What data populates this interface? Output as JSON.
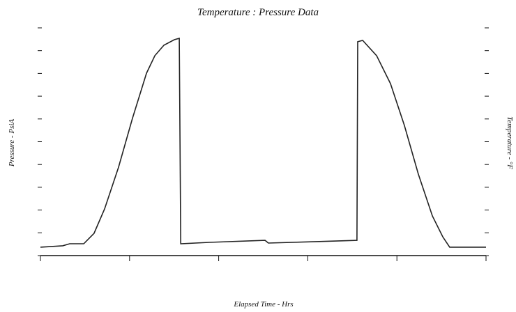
{
  "chart_data": {
    "type": "line",
    "title": "Temperature : Pressure Data",
    "x_label": "Elapsed Time - Hrs",
    "y_label": "Pressure - PsiA",
    "y2_label": "Temperature - °F",
    "xlim": [
      0,
      25
    ],
    "xticks": [
      0,
      5,
      10,
      15,
      20,
      25
    ],
    "ylim": [
      0,
      100
    ],
    "yticks": [
      0,
      10,
      20,
      30,
      40,
      50,
      60,
      70,
      80,
      90,
      100
    ],
    "series": [
      {
        "name": "Pressure",
        "color": "#222222",
        "x": [
          0,
          1.25,
          1.64,
          2.43,
          3.01,
          3.6,
          4.38,
          5.16,
          5.95,
          6.42,
          6.93,
          7.51,
          7.79,
          7.87,
          9.47,
          12.6,
          12.79,
          15.34,
          17.76,
          17.8,
          18.08,
          18.86,
          19.64,
          20.42,
          21.2,
          21.99,
          22.57,
          22.96,
          25
        ],
        "values": [
          3.7,
          4.3,
          5.2,
          5.2,
          9.8,
          20.5,
          38.8,
          60.2,
          80.1,
          87.8,
          92.4,
          94.8,
          95.4,
          5.2,
          5.8,
          6.7,
          5.5,
          6.1,
          6.7,
          93.9,
          94.5,
          87.8,
          75.5,
          57.2,
          35.8,
          17.4,
          8.3,
          3.7,
          3.7
        ]
      }
    ]
  }
}
